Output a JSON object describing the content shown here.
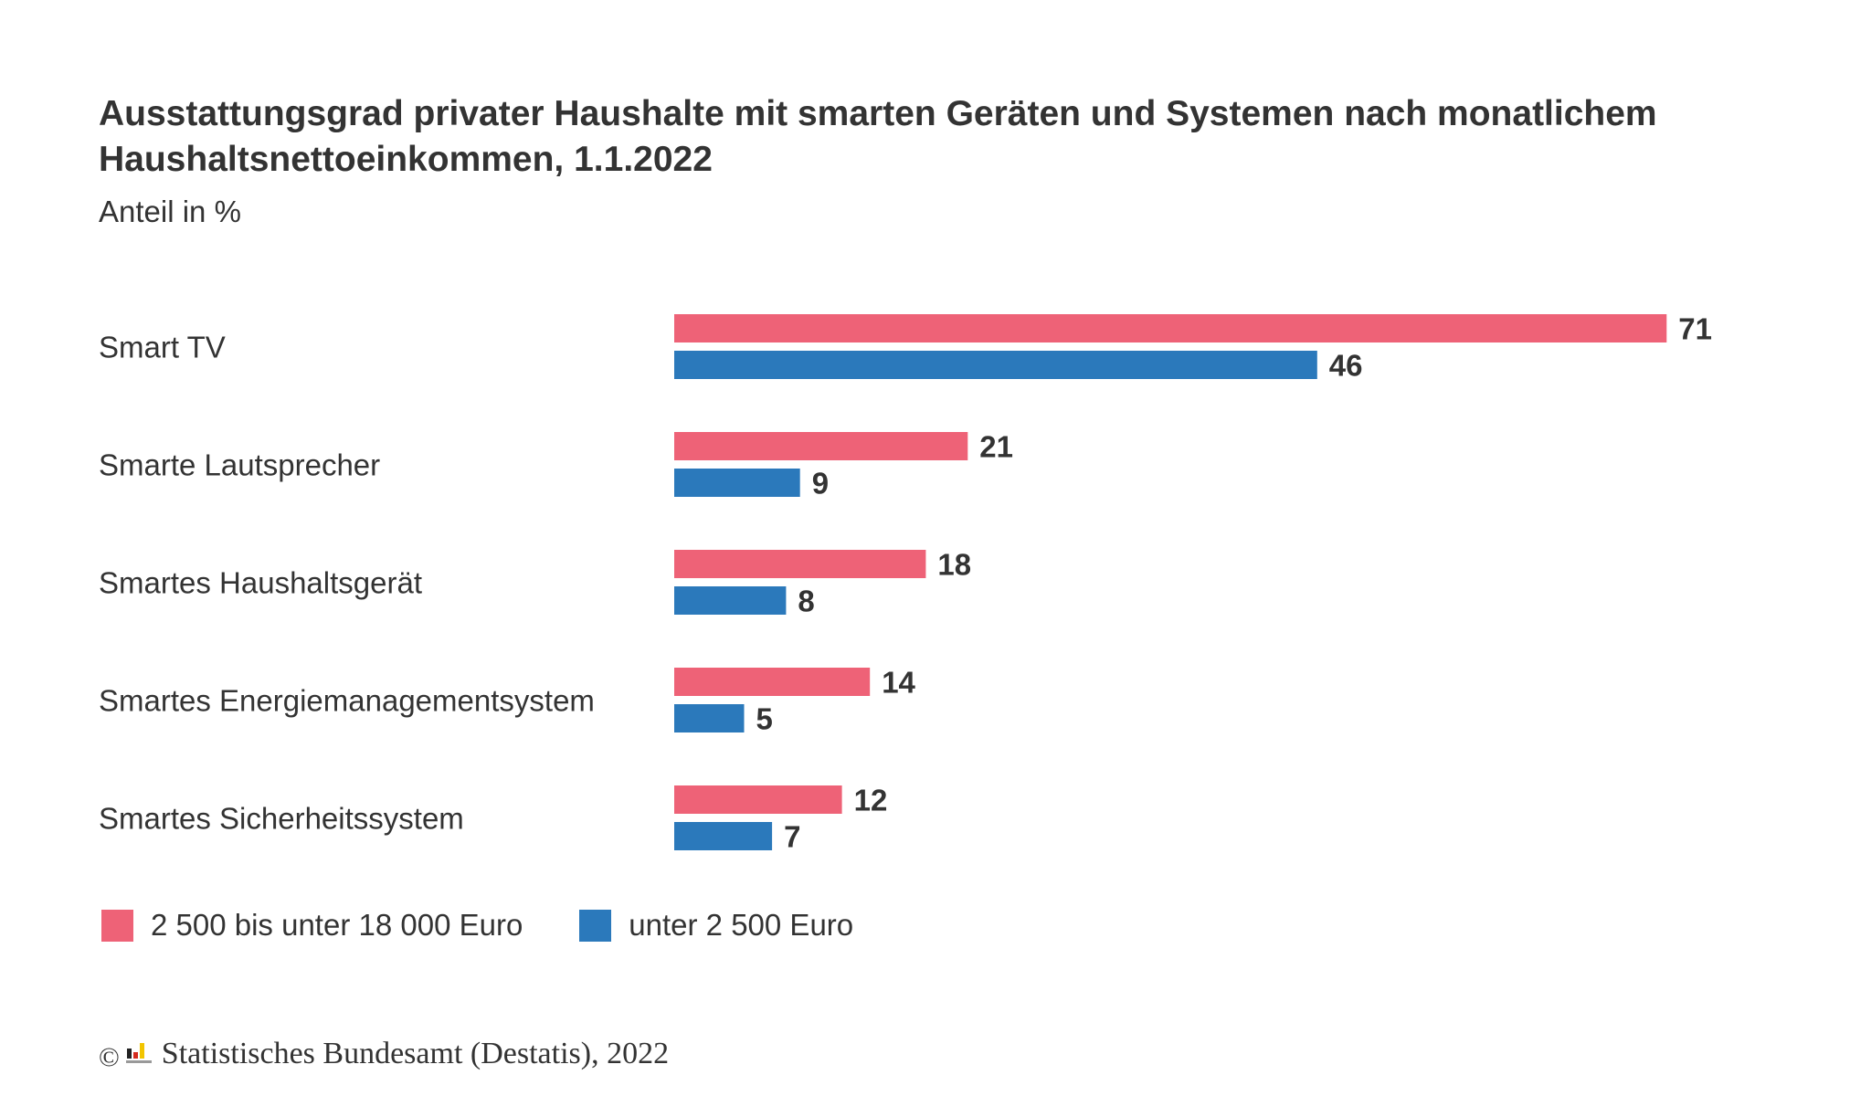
{
  "header": {
    "title": "Ausstattungsgrad privater Haushalte mit smarten Geräten und Systemen nach monatlichem Haushaltsnettoeinkommen, 1.1.2022",
    "subtitle": "Anteil in %"
  },
  "legend": {
    "items": [
      {
        "label": "2 500 bis unter 18 000 Euro",
        "color": "#ee6277"
      },
      {
        "label": "unter 2 500 Euro",
        "color": "#2b79bb"
      }
    ]
  },
  "footer": {
    "copyright_symbol": "©",
    "source": "Statistisches Bundesamt (Destatis), 2022",
    "logo_icon": "destatis-logo-icon"
  },
  "chart_data": {
    "type": "bar",
    "orientation": "horizontal",
    "title": "Ausstattungsgrad privater Haushalte mit smarten Geräten und Systemen nach monatlichem Haushaltsnettoeinkommen, 1.1.2022",
    "subtitle": "Anteil in %",
    "categories": [
      "Smart TV",
      "Smarte Lautsprecher",
      "Smartes Haushaltsgerät",
      "Smartes Energiemanagementsystem",
      "Smartes Sicherheitssystem"
    ],
    "series": [
      {
        "name": "2 500 bis unter 18 000 Euro",
        "color": "#ee6277",
        "values": [
          71,
          21,
          18,
          14,
          12
        ]
      },
      {
        "name": "unter 2 500 Euro",
        "color": "#2b79bb",
        "values": [
          46,
          9,
          8,
          5,
          7
        ]
      }
    ],
    "xlim": [
      0,
      71
    ],
    "grid": false,
    "data_labels": true,
    "legend_position": "bottom-left"
  }
}
